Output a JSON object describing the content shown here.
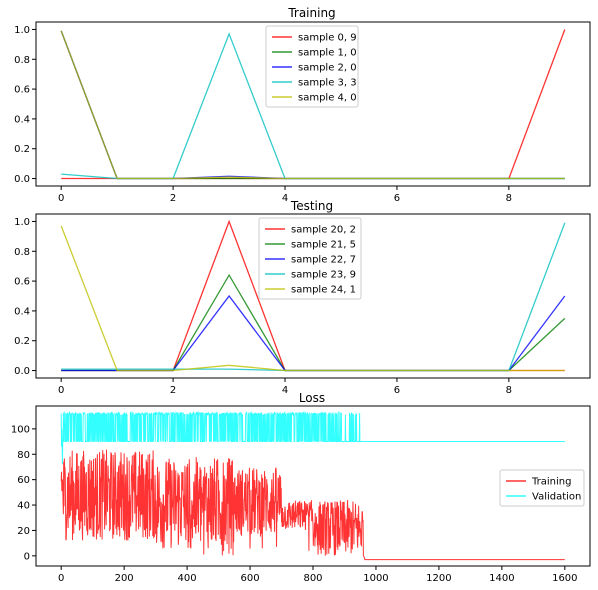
{
  "chart_data": [
    {
      "type": "line",
      "title": "Training",
      "x": [
        0,
        1,
        2,
        3,
        4,
        5,
        6,
        7,
        8,
        9
      ],
      "xticks": [
        "0",
        "2",
        "4",
        "6",
        "8"
      ],
      "yticks": [
        "0.0",
        "0.2",
        "0.4",
        "0.6",
        "0.8",
        "1.0"
      ],
      "xlim": [
        -0.45,
        9.45
      ],
      "ylim": [
        -0.05,
        1.05
      ],
      "legend": "top-center",
      "series": [
        {
          "name": "sample 0, 9",
          "color": "#ff0000",
          "values": [
            0.0,
            0.0,
            0.0,
            0.0,
            0.0,
            0.0,
            0.0,
            0.0,
            0.0,
            1.0
          ]
        },
        {
          "name": "sample 1, 0",
          "color": "#008000",
          "values": [
            0.99,
            0.0,
            0.0,
            0.0,
            0.0,
            0.0,
            0.0,
            0.0,
            0.0,
            0.0
          ]
        },
        {
          "name": "sample 2, 0",
          "color": "#0000ff",
          "values": [
            0.99,
            0.0,
            0.0,
            0.015,
            0.0,
            0.0,
            0.0,
            0.0,
            0.0,
            0.0
          ]
        },
        {
          "name": "sample 3, 3",
          "color": "#00bfbf",
          "values": [
            0.03,
            0.0,
            0.0,
            0.97,
            0.0,
            0.0,
            0.0,
            0.0,
            0.0,
            0.0
          ]
        },
        {
          "name": "sample 4, 0",
          "color": "#bfbf00",
          "values": [
            0.99,
            0.0,
            0.0,
            0.01,
            0.0,
            0.0,
            0.0,
            0.0,
            0.0,
            0.0
          ]
        }
      ]
    },
    {
      "type": "line",
      "title": "Testing",
      "x": [
        0,
        1,
        2,
        3,
        4,
        5,
        6,
        7,
        8,
        9
      ],
      "xticks": [
        "0",
        "2",
        "4",
        "6",
        "8"
      ],
      "yticks": [
        "0.0",
        "0.2",
        "0.4",
        "0.6",
        "0.8",
        "1.0"
      ],
      "xlim": [
        -0.45,
        9.45
      ],
      "ylim": [
        -0.05,
        1.05
      ],
      "legend": "top-center",
      "series": [
        {
          "name": "sample 20, 2",
          "color": "#ff0000",
          "values": [
            0.0,
            0.0,
            0.0,
            1.0,
            0.0,
            0.0,
            0.0,
            0.0,
            0.0,
            0.0
          ]
        },
        {
          "name": "sample 21, 5",
          "color": "#008000",
          "values": [
            0.0,
            0.0,
            0.0,
            0.64,
            0.0,
            0.0,
            0.0,
            0.0,
            0.0,
            0.35
          ]
        },
        {
          "name": "sample 22, 7",
          "color": "#0000ff",
          "values": [
            0.0,
            0.0,
            0.0,
            0.5,
            0.0,
            0.0,
            0.0,
            0.0,
            0.0,
            0.5
          ]
        },
        {
          "name": "sample 23, 9",
          "color": "#00bfbf",
          "values": [
            0.01,
            0.01,
            0.01,
            0.01,
            0.0,
            0.0,
            0.0,
            0.0,
            0.0,
            0.99
          ]
        },
        {
          "name": "sample 24, 1",
          "color": "#bfbf00",
          "values": [
            0.97,
            0.0,
            0.0,
            0.035,
            0.0,
            0.0,
            0.0,
            0.0,
            0.0,
            0.0
          ]
        }
      ]
    },
    {
      "type": "line",
      "title": "Loss",
      "xticks": [
        "0",
        "200",
        "400",
        "600",
        "800",
        "1000",
        "1200",
        "1400",
        "1600"
      ],
      "yticks": [
        "0",
        "20",
        "40",
        "60",
        "80",
        "100"
      ],
      "xlim": [
        -80,
        1680
      ],
      "ylim": [
        -8,
        118
      ],
      "legend": "right",
      "series": [
        {
          "name": "Training",
          "color": "#ff0000",
          "description_points": [
            [
              0,
              75
            ],
            [
              5,
              20
            ],
            [
              50,
              85
            ],
            [
              100,
              15
            ],
            [
              200,
              80
            ],
            [
              300,
              10
            ],
            [
              400,
              75
            ],
            [
              500,
              5
            ],
            [
              600,
              70
            ],
            [
              700,
              40
            ],
            [
              800,
              10
            ],
            [
              900,
              40
            ],
            [
              960,
              0
            ],
            [
              965,
              -5
            ],
            [
              1600,
              -5
            ]
          ]
        },
        {
          "name": "Validation",
          "color": "#00ffff",
          "description_points": [
            [
              0,
              112
            ],
            [
              3,
              70
            ],
            [
              20,
              90
            ],
            [
              100,
              90
            ],
            [
              300,
              90
            ],
            [
              600,
              90
            ],
            [
              900,
              90
            ],
            [
              960,
              90
            ],
            [
              1600,
              90
            ]
          ]
        }
      ]
    }
  ]
}
